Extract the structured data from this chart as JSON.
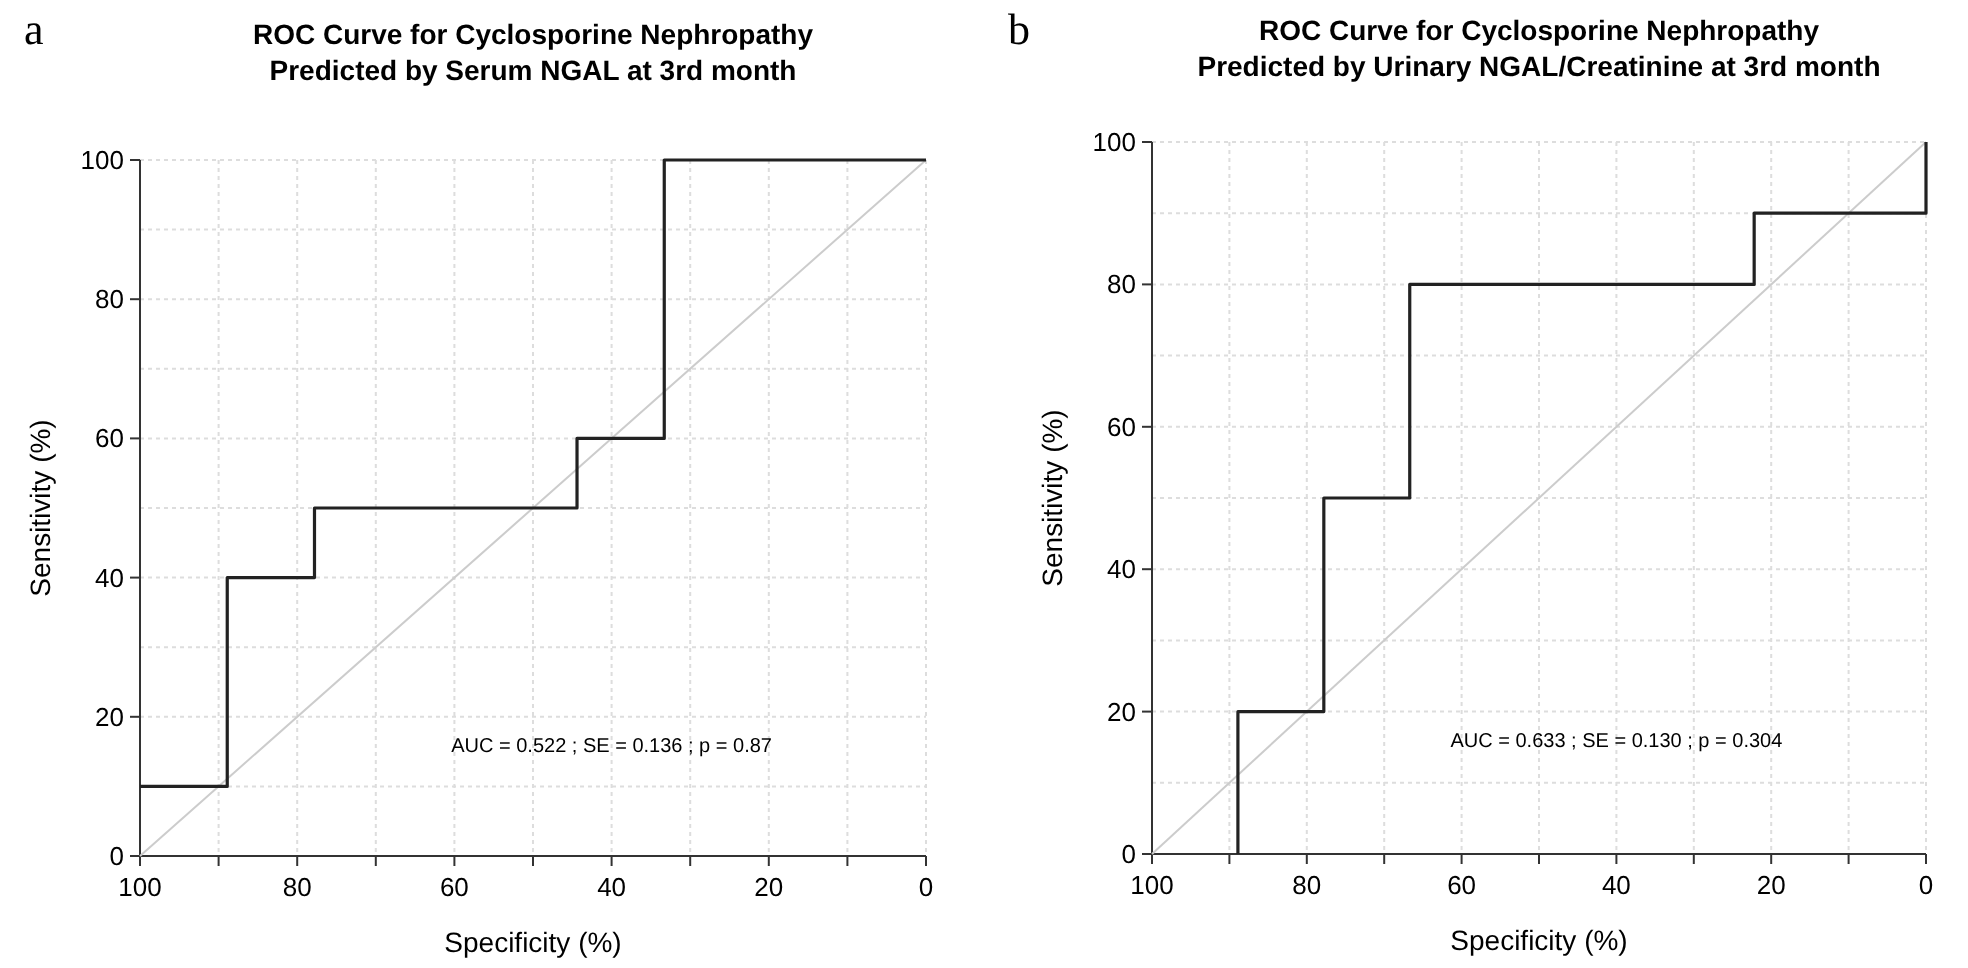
{
  "chart_data": [
    {
      "type": "line",
      "title": "ROC Curve for Cyclosporine Nephropathy\nPredicted by Serum NGAL at 3rd month",
      "xlabel": "Specificity (%)",
      "ylabel": "Sensitivity (%)",
      "xlim": [
        100,
        0
      ],
      "ylim": [
        0,
        100
      ],
      "xticks": [
        100,
        {
          "value": 90,
          "label": null
        },
        80,
        {
          "value": 70,
          "label": null
        },
        60,
        {
          "value": 50,
          "label": null
        },
        40,
        {
          "value": 30,
          "label": null
        },
        20,
        {
          "value": 10,
          "label": null
        },
        0
      ],
      "yticks": [
        0,
        {
          "value": 10,
          "label": null
        },
        20,
        {
          "value": 30,
          "label": null
        },
        40,
        {
          "value": 50,
          "label": null
        },
        60,
        {
          "value": 70,
          "label": null
        },
        80,
        {
          "value": 90,
          "label": null
        },
        100
      ],
      "grid": true,
      "marker": "none",
      "line_style": "solid",
      "series": [
        {
          "color": "#cccccc",
          "x": [
            100,
            0
          ],
          "values": [
            0,
            100
          ]
        },
        {
          "color": "#222222",
          "x": [
            100,
            88.9,
            88.9,
            77.8,
            77.8,
            44.4,
            44.4,
            33.3,
            33.3,
            0
          ],
          "values": [
            10,
            10,
            40,
            40,
            50,
            50,
            60,
            60,
            100,
            100
          ]
        }
      ],
      "annotations": [
        "a",
        "AUC = 0.522 ;  SE = 0.136 ;  p = 0.87"
      ]
    },
    {
      "type": "line",
      "title": "ROC Curve for Cyclosporine Nephropathy\nPredicted by Urinary NGAL/Creatinine at 3rd month",
      "xlabel": "Specificity (%)",
      "ylabel": "Sensitivity (%)",
      "xlim": [
        100,
        0
      ],
      "ylim": [
        0,
        100
      ],
      "xticks": [
        100,
        {
          "value": 90,
          "label": null
        },
        80,
        {
          "value": 70,
          "label": null
        },
        60,
        {
          "value": 50,
          "label": null
        },
        40,
        {
          "value": 30,
          "label": null
        },
        20,
        {
          "value": 10,
          "label": null
        },
        0
      ],
      "yticks": [
        0,
        {
          "value": 10,
          "label": null
        },
        20,
        {
          "value": 30,
          "label": null
        },
        40,
        {
          "value": 50,
          "label": null
        },
        60,
        {
          "value": 70,
          "label": null
        },
        80,
        {
          "value": 90,
          "label": null
        },
        100
      ],
      "grid": true,
      "marker": "none",
      "line_style": "solid",
      "series": [
        {
          "color": "#cccccc",
          "x": [
            100,
            0
          ],
          "values": [
            0,
            100
          ]
        },
        {
          "color": "#222222",
          "x": [
            88.9,
            88.9,
            77.8,
            77.8,
            66.7,
            66.7,
            22.2,
            22.2,
            0,
            0
          ],
          "values": [
            0,
            20,
            20,
            50,
            50,
            80,
            80,
            90,
            90,
            100
          ]
        }
      ],
      "annotations": [
        "b",
        "AUC = 0.633 ;  SE = 0.130 ;  p = 0.304"
      ]
    }
  ]
}
